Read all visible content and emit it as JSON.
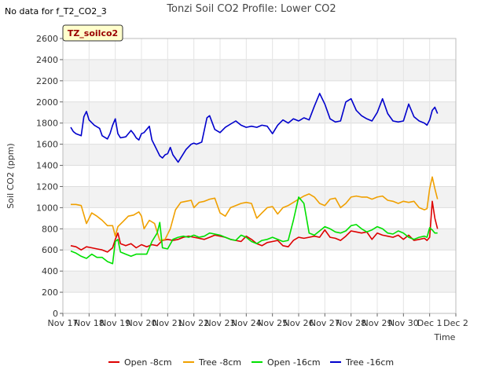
{
  "chart_data": {
    "type": "line",
    "title": "Tonzi Soil CO2 Profile: Lower CO2",
    "no_data_text": "No data for f_T2_CO2_3",
    "badge_text": "TZ_soilco2",
    "xlabel": "Time",
    "ylabel": "Soil CO2 (ppm)",
    "ylim": [
      0,
      2600
    ],
    "xlim": [
      0,
      15
    ],
    "yticks": [
      0,
      200,
      400,
      600,
      800,
      1000,
      1200,
      1400,
      1600,
      1800,
      2000,
      2200,
      2400,
      2600
    ],
    "xtick_labels": [
      "Nov 17",
      "Nov 18",
      "Nov 19",
      "Nov 20",
      "Nov 21",
      "Nov 22",
      "Nov 23",
      "Nov 24",
      "Nov 25",
      "Nov 26",
      "Nov 27",
      "Nov 28",
      "Nov 29",
      "Nov 30",
      "Dec 1",
      "Dec 2"
    ],
    "grid": true,
    "legend_position": "bottom",
    "series": [
      {
        "name": "Open -8cm",
        "color": "#dd0000",
        "x": [
          0.3,
          0.5,
          0.7,
          0.9,
          1.1,
          1.3,
          1.5,
          1.7,
          1.9,
          2.0,
          2.1,
          2.2,
          2.4,
          2.6,
          2.8,
          3.0,
          3.2,
          3.4,
          3.6,
          3.8,
          4.0,
          4.2,
          4.4,
          4.6,
          4.8,
          5.0,
          5.2,
          5.4,
          5.6,
          5.8,
          6.0,
          6.2,
          6.4,
          6.6,
          6.8,
          7.0,
          7.2,
          7.4,
          7.6,
          7.8,
          8.0,
          8.2,
          8.4,
          8.6,
          8.8,
          9.0,
          9.2,
          9.4,
          9.6,
          9.8,
          10.0,
          10.2,
          10.4,
          10.6,
          10.8,
          11.0,
          11.2,
          11.4,
          11.6,
          11.8,
          12.0,
          12.2,
          12.4,
          12.6,
          12.8,
          13.0,
          13.2,
          13.4,
          13.6,
          13.8,
          13.9,
          14.0,
          14.1,
          14.2,
          14.3
        ],
        "y": [
          640,
          630,
          600,
          630,
          620,
          610,
          600,
          580,
          620,
          700,
          760,
          660,
          640,
          660,
          620,
          650,
          630,
          650,
          640,
          690,
          700,
          690,
          700,
          720,
          730,
          720,
          710,
          700,
          720,
          740,
          730,
          720,
          700,
          690,
          680,
          730,
          700,
          660,
          640,
          670,
          680,
          690,
          640,
          630,
          690,
          720,
          710,
          720,
          730,
          720,
          790,
          720,
          710,
          690,
          730,
          780,
          770,
          760,
          770,
          700,
          760,
          740,
          730,
          720,
          740,
          700,
          740,
          690,
          700,
          710,
          690,
          720,
          1060,
          900,
          800
        ]
      },
      {
        "name": "Tree -8cm",
        "color": "#f0a000",
        "x": [
          0.3,
          0.5,
          0.7,
          0.9,
          1.1,
          1.3,
          1.5,
          1.7,
          1.9,
          2.0,
          2.1,
          2.3,
          2.5,
          2.7,
          2.9,
          3.0,
          3.1,
          3.3,
          3.5,
          3.7,
          3.9,
          4.1,
          4.3,
          4.5,
          4.7,
          4.9,
          5.0,
          5.2,
          5.4,
          5.6,
          5.8,
          6.0,
          6.2,
          6.4,
          6.6,
          6.8,
          7.0,
          7.2,
          7.4,
          7.6,
          7.8,
          8.0,
          8.2,
          8.4,
          8.6,
          8.8,
          9.0,
          9.2,
          9.4,
          9.6,
          9.8,
          10.0,
          10.2,
          10.4,
          10.6,
          10.8,
          11.0,
          11.2,
          11.4,
          11.6,
          11.8,
          12.0,
          12.2,
          12.4,
          12.6,
          12.8,
          13.0,
          13.2,
          13.4,
          13.6,
          13.8,
          13.9,
          14.0,
          14.1,
          14.2,
          14.3
        ],
        "y": [
          1030,
          1030,
          1020,
          850,
          950,
          920,
          880,
          830,
          830,
          730,
          820,
          870,
          920,
          930,
          960,
          920,
          800,
          880,
          850,
          690,
          700,
          800,
          980,
          1050,
          1060,
          1070,
          1000,
          1050,
          1060,
          1080,
          1090,
          950,
          920,
          1000,
          1020,
          1040,
          1050,
          1040,
          900,
          950,
          1000,
          1010,
          940,
          1000,
          1020,
          1050,
          1080,
          1110,
          1130,
          1100,
          1040,
          1020,
          1080,
          1090,
          1000,
          1040,
          1100,
          1110,
          1100,
          1100,
          1080,
          1100,
          1110,
          1070,
          1060,
          1040,
          1060,
          1050,
          1060,
          1000,
          980,
          990,
          1180,
          1290,
          1180,
          1080
        ]
      },
      {
        "name": "Open -16cm",
        "color": "#00e000",
        "x": [
          0.3,
          0.5,
          0.7,
          0.9,
          1.1,
          1.3,
          1.5,
          1.7,
          1.9,
          2.0,
          2.1,
          2.2,
          2.4,
          2.6,
          2.8,
          3.0,
          3.2,
          3.4,
          3.6,
          3.7,
          3.8,
          4.0,
          4.2,
          4.4,
          4.6,
          4.8,
          5.0,
          5.2,
          5.4,
          5.6,
          5.8,
          6.0,
          6.2,
          6.4,
          6.6,
          6.8,
          7.0,
          7.2,
          7.4,
          7.6,
          7.8,
          8.0,
          8.2,
          8.4,
          8.6,
          8.8,
          9.0,
          9.2,
          9.4,
          9.6,
          9.8,
          10.0,
          10.2,
          10.4,
          10.6,
          10.8,
          11.0,
          11.2,
          11.4,
          11.6,
          11.8,
          12.0,
          12.2,
          12.4,
          12.6,
          12.8,
          13.0,
          13.2,
          13.4,
          13.6,
          13.8,
          13.9,
          14.0,
          14.1,
          14.2,
          14.3
        ],
        "y": [
          590,
          570,
          540,
          520,
          560,
          530,
          530,
          490,
          470,
          680,
          700,
          580,
          560,
          540,
          560,
          560,
          560,
          680,
          760,
          860,
          620,
          610,
          700,
          720,
          730,
          720,
          740,
          720,
          730,
          760,
          750,
          740,
          720,
          700,
          690,
          740,
          720,
          680,
          660,
          690,
          700,
          720,
          700,
          680,
          690,
          880,
          1100,
          1040,
          760,
          740,
          780,
          820,
          800,
          770,
          760,
          780,
          830,
          840,
          800,
          770,
          790,
          820,
          800,
          760,
          750,
          780,
          760,
          720,
          700,
          720,
          730,
          720,
          810,
          790,
          760,
          760
        ]
      },
      {
        "name": "Tree -16cm",
        "color": "#0000cc",
        "x": [
          0.3,
          0.4,
          0.5,
          0.7,
          0.8,
          0.9,
          1.0,
          1.2,
          1.4,
          1.5,
          1.7,
          1.8,
          1.9,
          2.0,
          2.1,
          2.2,
          2.4,
          2.6,
          2.7,
          2.8,
          2.9,
          3.0,
          3.1,
          3.3,
          3.4,
          3.5,
          3.6,
          3.7,
          3.8,
          3.9,
          4.0,
          4.1,
          4.2,
          4.4,
          4.5,
          4.7,
          4.9,
          5.0,
          5.1,
          5.3,
          5.5,
          5.6,
          5.8,
          6.0,
          6.2,
          6.4,
          6.6,
          6.8,
          7.0,
          7.2,
          7.4,
          7.6,
          7.8,
          8.0,
          8.2,
          8.4,
          8.6,
          8.8,
          9.0,
          9.2,
          9.3,
          9.4,
          9.6,
          9.8,
          10.0,
          10.2,
          10.4,
          10.6,
          10.8,
          11.0,
          11.2,
          11.4,
          11.6,
          11.8,
          12.0,
          12.2,
          12.4,
          12.6,
          12.8,
          13.0,
          13.2,
          13.4,
          13.6,
          13.8,
          13.9,
          14.0,
          14.1,
          14.2,
          14.3
        ],
        "y": [
          1760,
          1720,
          1700,
          1680,
          1860,
          1910,
          1830,
          1780,
          1750,
          1680,
          1650,
          1700,
          1780,
          1840,
          1700,
          1660,
          1670,
          1730,
          1700,
          1660,
          1640,
          1700,
          1710,
          1770,
          1640,
          1590,
          1540,
          1490,
          1470,
          1500,
          1510,
          1570,
          1500,
          1430,
          1470,
          1550,
          1600,
          1610,
          1600,
          1620,
          1850,
          1870,
          1740,
          1710,
          1760,
          1790,
          1820,
          1780,
          1760,
          1770,
          1760,
          1780,
          1770,
          1700,
          1780,
          1830,
          1800,
          1840,
          1820,
          1850,
          1840,
          1830,
          1960,
          2080,
          1980,
          1840,
          1810,
          1820,
          2000,
          2030,
          1920,
          1870,
          1840,
          1820,
          1900,
          2030,
          1890,
          1820,
          1810,
          1820,
          1980,
          1860,
          1820,
          1800,
          1780,
          1830,
          1920,
          1950,
          1890
        ]
      }
    ]
  }
}
